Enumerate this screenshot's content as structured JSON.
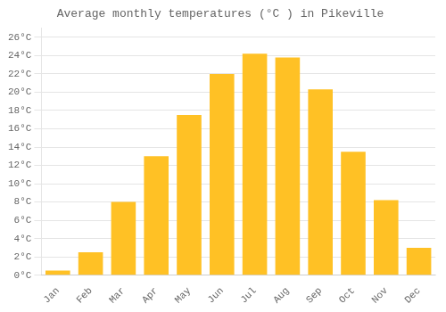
{
  "chart_data": {
    "type": "bar",
    "title": "Average monthly temperatures (°C ) in Pikeville",
    "categories": [
      "Jan",
      "Feb",
      "Mar",
      "Apr",
      "May",
      "Jun",
      "Jul",
      "Aug",
      "Sep",
      "Oct",
      "Nov",
      "Dec"
    ],
    "values": [
      0.5,
      2.5,
      8.0,
      13.0,
      17.5,
      22.0,
      24.2,
      23.8,
      20.3,
      13.5,
      8.2,
      3.0
    ],
    "color": "#FFC125",
    "ylim": [
      0,
      27
    ],
    "yticks": [
      {
        "value": 0,
        "label": "0°C"
      },
      {
        "value": 2,
        "label": "2°C"
      },
      {
        "value": 4,
        "label": "4°C"
      },
      {
        "value": 6,
        "label": "6°C"
      },
      {
        "value": 8,
        "label": "8°C"
      },
      {
        "value": 10,
        "label": "10°C"
      },
      {
        "value": 12,
        "label": "12°C"
      },
      {
        "value": 14,
        "label": "14°C"
      },
      {
        "value": 16,
        "label": "16°C"
      },
      {
        "value": 18,
        "label": "18°C"
      },
      {
        "value": 20,
        "label": "20°C"
      },
      {
        "value": 22,
        "label": "22°C"
      },
      {
        "value": 24,
        "label": "24°C"
      },
      {
        "value": 26,
        "label": "26°C"
      }
    ],
    "grid": true
  }
}
